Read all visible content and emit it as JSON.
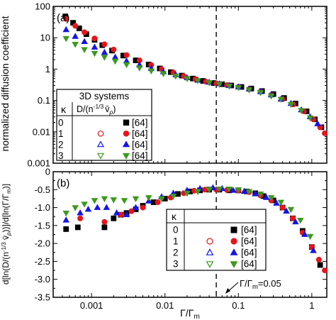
{
  "chart_data": [
    {
      "type": "scatter",
      "panel_label": "(a)",
      "xscale": "log",
      "yscale": "log",
      "xlim": [
        0.0003,
        1.6
      ],
      "ylim": [
        0.001,
        100
      ],
      "ylabel": "normalized diffusion coefficient",
      "xlabel": "",
      "x_tick_labels": [
        "0.001",
        "0.01",
        "0.1",
        "1"
      ],
      "y_ticks": [
        0.001,
        0.01,
        0.1,
        1,
        10,
        100
      ],
      "y_tick_labels": [
        "0.001",
        "0.01",
        "0.1",
        "1",
        "10",
        "100"
      ],
      "reference_line": {
        "x": 0.05,
        "style": "dashed"
      },
      "legend": {
        "placement": "bottom-left",
        "title": "3D systems",
        "col_header_kappa": "κ",
        "col_header_quantity": "D/(n",
        "col_header_quantity_exp": "-1/3",
        "col_header_quantity_tail": "v̄",
        "col_header_quantity_sub": "p",
        "col_header_quantity_close": ")",
        "rows": [
          {
            "kappa": "0",
            "ref": "[64]"
          },
          {
            "kappa": "1",
            "ref": "[64]"
          },
          {
            "kappa": "2",
            "ref": "[64]"
          },
          {
            "kappa": "3",
            "ref": "[64]"
          }
        ]
      },
      "series": [
        {
          "kappa": "0",
          "marker": "square",
          "color": "#000000",
          "x": [
            0.00044,
            0.00056,
            0.00068,
            0.00085,
            0.0011,
            0.0014,
            0.0019,
            0.0027,
            0.004,
            0.006,
            0.0085,
            0.012,
            0.017,
            0.024,
            0.033,
            0.046,
            0.06,
            0.08,
            0.11,
            0.15,
            0.21,
            0.3,
            0.42,
            0.6,
            0.85,
            1.1,
            1.35
          ],
          "y": [
            48,
            30,
            20,
            13,
            8.6,
            5.8,
            3.9,
            2.7,
            1.9,
            1.4,
            1.05,
            0.8,
            0.62,
            0.5,
            0.42,
            0.36,
            0.33,
            0.3,
            0.27,
            0.24,
            0.2,
            0.16,
            0.12,
            0.08,
            0.045,
            0.025,
            0.014
          ]
        },
        {
          "kappa": "1",
          "marker": "circle",
          "color": "#e8141c",
          "fill": "#e8141c",
          "x": [
            0.00045,
            0.0006,
            0.0008,
            0.0011,
            0.0015,
            0.002,
            0.003,
            0.0045,
            0.0065,
            0.009,
            0.013,
            0.018,
            0.026,
            0.036,
            0.05,
            0.07,
            0.1,
            0.14,
            0.2,
            0.28,
            0.4,
            0.56,
            0.78,
            1.05,
            1.3,
            1.5
          ],
          "y": [
            40,
            24,
            15,
            9.5,
            6.2,
            4.2,
            2.8,
            1.9,
            1.35,
            1.0,
            0.78,
            0.6,
            0.48,
            0.4,
            0.35,
            0.31,
            0.27,
            0.23,
            0.19,
            0.15,
            0.11,
            0.075,
            0.045,
            0.025,
            0.014,
            0.009
          ]
        },
        {
          "kappa": "2",
          "marker": "triangle-up",
          "color": "#1414e8",
          "fill": "#1414e8",
          "x": [
            0.00045,
            0.0006,
            0.0008,
            0.0011,
            0.0015,
            0.0021,
            0.003,
            0.0045,
            0.0065,
            0.0095,
            0.014,
            0.02,
            0.028,
            0.04,
            0.055,
            0.075,
            0.1,
            0.14,
            0.2,
            0.28,
            0.38,
            0.52,
            0.72,
            0.95,
            1.2
          ],
          "y": [
            18,
            11,
            7.5,
            5.0,
            3.4,
            2.4,
            1.8,
            1.35,
            1.05,
            0.82,
            0.66,
            0.53,
            0.44,
            0.38,
            0.34,
            0.3,
            0.27,
            0.23,
            0.19,
            0.15,
            0.11,
            0.08,
            0.05,
            0.03,
            0.018
          ]
        },
        {
          "kappa": "3",
          "marker": "triangle-down",
          "color": "#3c9a1e",
          "fill": "#3c9a1e",
          "x": [
            0.00045,
            0.0006,
            0.0008,
            0.0011,
            0.0015,
            0.0021,
            0.003,
            0.0045,
            0.0065,
            0.0095,
            0.014,
            0.02,
            0.028,
            0.04,
            0.055,
            0.075,
            0.1,
            0.14,
            0.2,
            0.28,
            0.38,
            0.52,
            0.72,
            0.95
          ],
          "y": [
            9.5,
            6.2,
            4.2,
            3.2,
            2.4,
            1.8,
            1.4,
            1.1,
            0.88,
            0.72,
            0.6,
            0.5,
            0.43,
            0.37,
            0.33,
            0.29,
            0.26,
            0.22,
            0.18,
            0.14,
            0.11,
            0.075,
            0.048,
            0.028
          ]
        }
      ]
    },
    {
      "type": "scatter",
      "panel_label": "(b)",
      "xscale": "log",
      "yscale": "linear",
      "xlim": [
        0.0003,
        1.6
      ],
      "ylim": [
        -3.5,
        0
      ],
      "xlabel": "Γ/Γ",
      "xlabel_sub": "m",
      "ylabel": "d[ln(D/(n",
      "ylabel_exp": "-1/3",
      "ylabel_tail": " v̄",
      "ylabel_sub": "p",
      "ylabel_end": "))]/d[ln(Γ/Γ",
      "ylabel_sub2": "m",
      "ylabel_close": ")]",
      "x_tick_labels": [
        "0.001",
        "0.01",
        "0.1",
        "1"
      ],
      "y_ticks": [
        0,
        -0.5,
        -1.0,
        -1.5,
        -2.0,
        -2.5,
        -3.0,
        -3.5
      ],
      "y_tick_labels": [
        "0",
        "-0.5",
        "-1.0",
        "-1.5",
        "-2.0",
        "-2.5",
        "-3.0",
        "-3.5"
      ],
      "reference_line": {
        "x": 0.05,
        "style": "dashed"
      },
      "annotation": {
        "text": "Γ/Γ",
        "sub": "m",
        "tail": "=0.05"
      },
      "legend": {
        "placement": "bottom-center",
        "col_header_kappa": "κ",
        "rows": [
          {
            "kappa": "0",
            "ref": "[64]"
          },
          {
            "kappa": "1",
            "ref": "[64]"
          },
          {
            "kappa": "2",
            "ref": "[64]"
          },
          {
            "kappa": "3",
            "ref": "[64]"
          }
        ]
      },
      "series": [
        {
          "kappa": "0",
          "marker": "square",
          "color": "#000000",
          "x": [
            0.00045,
            0.00065,
            0.0015,
            0.002,
            0.0025,
            0.003,
            0.004,
            0.005,
            0.007,
            0.01,
            0.015,
            0.022,
            0.03,
            0.04,
            0.055,
            0.075,
            0.1,
            0.13,
            0.17,
            0.22,
            0.3,
            0.4,
            0.55,
            0.75,
            1.0,
            1.3
          ],
          "y": [
            -1.6,
            -1.55,
            -1.55,
            -1.3,
            -1.2,
            -1.15,
            -1.05,
            -0.95,
            -0.85,
            -0.75,
            -0.62,
            -0.55,
            -0.52,
            -0.5,
            -0.5,
            -0.52,
            -0.52,
            -0.55,
            -0.6,
            -0.68,
            -0.8,
            -1.0,
            -1.3,
            -1.65,
            -2.1,
            -2.6
          ]
        },
        {
          "kappa": "1",
          "marker": "circle",
          "color": "#e8141c",
          "fill": "#e8141c",
          "x": [
            0.0007,
            0.0015,
            0.0025,
            0.0035,
            0.005,
            0.008,
            0.012,
            0.018,
            0.025,
            0.035,
            0.05,
            0.07,
            0.1,
            0.14,
            0.2,
            0.28,
            0.4,
            0.55,
            0.75,
            1.0,
            1.25,
            1.5
          ],
          "y": [
            -1.3,
            -1.4,
            -1.2,
            -1.1,
            -1.0,
            -0.85,
            -0.72,
            -0.6,
            -0.53,
            -0.5,
            -0.5,
            -0.51,
            -0.53,
            -0.57,
            -0.66,
            -0.8,
            -1.0,
            -1.3,
            -1.7,
            -2.1,
            -2.45,
            -2.75
          ]
        },
        {
          "kappa": "2",
          "marker": "triangle-up",
          "color": "#1414e8",
          "fill": "#1414e8",
          "x": [
            0.00045,
            0.0007,
            0.0009,
            0.0012,
            0.0016,
            0.0022,
            0.003,
            0.004,
            0.006,
            0.009,
            0.013,
            0.02,
            0.03,
            0.045,
            0.06,
            0.085,
            0.12,
            0.17,
            0.24,
            0.33,
            0.45,
            0.6,
            0.8,
            1.05
          ],
          "y": [
            -1.35,
            -1.15,
            -1.05,
            -1.0,
            -1.0,
            -1.15,
            -1.2,
            -1.0,
            -0.82,
            -0.7,
            -0.6,
            -0.52,
            -0.47,
            -0.45,
            -0.47,
            -0.52,
            -0.55,
            -0.62,
            -0.72,
            -0.88,
            -1.1,
            -1.4,
            -1.75,
            -2.2
          ]
        },
        {
          "kappa": "3",
          "marker": "triangle-down",
          "color": "#3c9a1e",
          "fill": "#3c9a1e",
          "x": [
            0.00045,
            0.0006,
            0.0008,
            0.0011,
            0.0015,
            0.002,
            0.0028,
            0.004,
            0.006,
            0.009,
            0.013,
            0.02,
            0.028,
            0.04,
            0.055,
            0.075,
            0.1,
            0.14,
            0.2,
            0.28,
            0.38,
            0.52,
            0.7,
            0.95
          ],
          "y": [
            -1.15,
            -1.0,
            -0.9,
            -0.8,
            -0.75,
            -0.78,
            -0.8,
            -0.75,
            -0.72,
            -0.75,
            -0.68,
            -0.6,
            -0.55,
            -0.5,
            -0.48,
            -0.48,
            -0.5,
            -0.55,
            -0.62,
            -0.72,
            -0.85,
            -1.05,
            -1.35,
            -1.8
          ]
        }
      ]
    }
  ]
}
